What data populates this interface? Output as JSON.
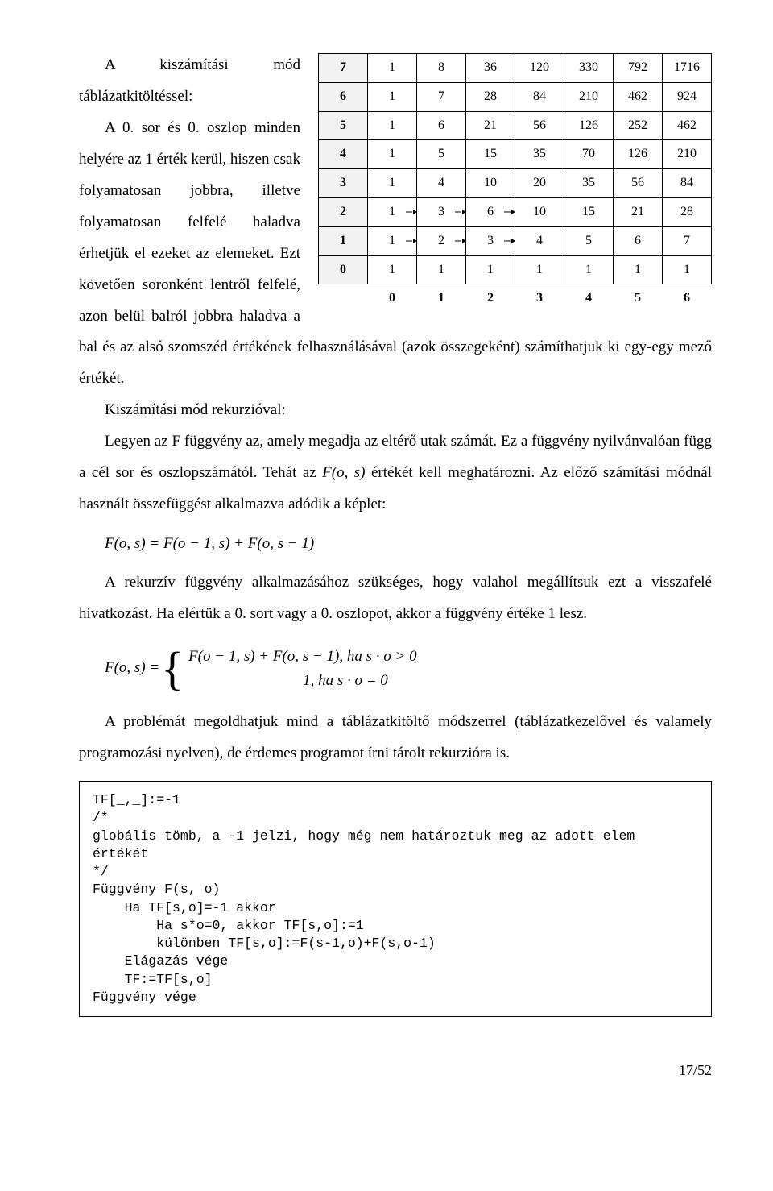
{
  "heading": "A kiszámítási mód táblázatkitöltéssel:",
  "para1a": "A 0. sor és 0. oszlop minden helyére az 1 érték kerül, hiszen csak folyamatosan jobbra, illetve folyamatosan felfelé haladva érhetjük el ezeket az elemeket. Ezt követően soronként lentről felfelé, azon belül balról jobbra haladva a bal és az alsó szomszéd értékének felhasználásával (azok összegeként) számíthatjuk ki egy-egy mező értékét.",
  "para1b": "Kiszámítási mód rekurzióval:",
  "para2": "Legyen az F függvény az, amely megadja az eltérő utak számát. Ez a függvény nyilvánvalóan függ a cél sor és oszlopszámától. Tehát az ",
  "para2_fos": "F(o, s)",
  "para2_tail": " értékét kell meghatározni. Az előző számítási módnál használt összefüggést alkalmazva adódik a képlet:",
  "formula1": "F(o, s) = F(o − 1, s) + F(o, s − 1)",
  "para3": "A rekurzív függvény alkalmazásához szükséges, hogy valahol megállítsuk ezt a visszafelé hivatkozást. Ha elértük a 0. sort vagy a 0. oszlopot, akkor a függvény értéke 1 lesz.",
  "piecewise_lhs": "F(o, s) =",
  "piecewise_line1": "F(o − 1, s) + F(o, s − 1),  ha  s · o > 0",
  "piecewise_line2": "1,  ha  s · o = 0",
  "para4": "A problémát megoldhatjuk mind a táblázatkitöltő módszerrel (táblázatkezelővel és valamely programozási nyelven), de érdemes programot írni tárolt rekurzióra is.",
  "code": "TF[_,_]:=-1\n/*\nglobális tömb, a -1 jelzi, hogy még nem határoztuk meg az adott elem\nértékét\n*/\nFüggvény F(s, o)\n    Ha TF[s,o]=-1 akkor\n        Ha s*o=0, akkor TF[s,o]:=1\n        különben TF[s,o]:=F(s-1,o)+F(s,o-1)\n    Elágazás vége\n    TF:=TF[s,o]\nFüggvény vége",
  "pagenum": "17/52",
  "table": {
    "col_headers": [
      "0",
      "1",
      "2",
      "3",
      "4",
      "5",
      "6"
    ],
    "rows": [
      {
        "hdr": "7",
        "cells": [
          "1",
          "8",
          "36",
          "120",
          "330",
          "792",
          "1716"
        ]
      },
      {
        "hdr": "6",
        "cells": [
          "1",
          "7",
          "28",
          "84",
          "210",
          "462",
          "924"
        ]
      },
      {
        "hdr": "5",
        "cells": [
          "1",
          "6",
          "21",
          "56",
          "126",
          "252",
          "462"
        ]
      },
      {
        "hdr": "4",
        "cells": [
          "1",
          "5",
          "15",
          "35",
          "70",
          "126",
          "210"
        ]
      },
      {
        "hdr": "3",
        "cells": [
          "1",
          "4",
          "10",
          "20",
          "35",
          "56",
          "84"
        ]
      },
      {
        "hdr": "2",
        "cells": [
          "1",
          "3",
          "6",
          "10",
          "15",
          "21",
          "28"
        ]
      },
      {
        "hdr": "1",
        "cells": [
          "1",
          "2",
          "3",
          "4",
          "5",
          "6",
          "7"
        ]
      },
      {
        "hdr": "0",
        "cells": [
          "1",
          "1",
          "1",
          "1",
          "1",
          "1",
          "1"
        ]
      }
    ],
    "arrows_h": [
      {
        "r": 5,
        "c": 1
      },
      {
        "r": 5,
        "c": 2
      },
      {
        "r": 5,
        "c": 3
      },
      {
        "r": 6,
        "c": 1
      },
      {
        "r": 6,
        "c": 2
      },
      {
        "r": 6,
        "c": 3
      }
    ],
    "arrows_v": [
      {
        "r": 5,
        "c": 1
      },
      {
        "r": 5,
        "c": 2
      },
      {
        "r": 5,
        "c": 3
      },
      {
        "r": 6,
        "c": 1
      },
      {
        "r": 6,
        "c": 2
      },
      {
        "r": 6,
        "c": 3
      },
      {
        "r": 7,
        "c": 1
      },
      {
        "r": 7,
        "c": 2
      },
      {
        "r": 7,
        "c": 3
      }
    ]
  }
}
